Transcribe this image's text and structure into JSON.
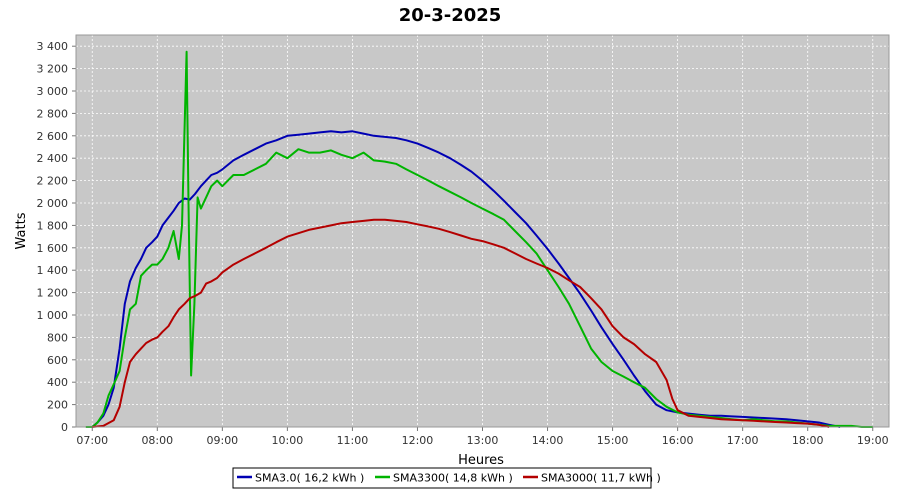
{
  "chart_data": {
    "type": "line",
    "title": "20-3-2025",
    "xlabel": "Heures",
    "ylabel": "Watts",
    "xlim": [
      6.75,
      19.25
    ],
    "ylim": [
      0,
      3500
    ],
    "x_ticks": [
      7,
      8,
      9,
      10,
      11,
      12,
      13,
      14,
      15,
      16,
      17,
      18,
      19
    ],
    "x_tick_labels": [
      "07:00",
      "08:00",
      "09:00",
      "10:00",
      "11:00",
      "12:00",
      "13:00",
      "14:00",
      "15:00",
      "16:00",
      "17:00",
      "18:00",
      "19:00"
    ],
    "y_ticks": [
      0,
      200,
      400,
      600,
      800,
      1000,
      1200,
      1400,
      1600,
      1800,
      2000,
      2200,
      2400,
      2600,
      2800,
      3000,
      3200,
      3400
    ],
    "y_tick_labels": [
      "0",
      "200",
      "400",
      "600",
      "800",
      "1 000",
      "1 200",
      "1 400",
      "1 600",
      "1 800",
      "2 000",
      "2 200",
      "2 400",
      "2 600",
      "2 800",
      "3 000",
      "3 200",
      "3 400"
    ],
    "grid": true,
    "legend_position": "bottom-center",
    "colors": {
      "plot_bg": "#c8c8c8",
      "grid": "#ffffff",
      "outline": "#999999"
    },
    "series": [
      {
        "name": "SMA3.0( 16,2 kWh )",
        "color": "#0000b4",
        "x": [
          7.0,
          7.08,
          7.17,
          7.25,
          7.33,
          7.42,
          7.5,
          7.58,
          7.67,
          7.75,
          7.83,
          7.92,
          8.0,
          8.08,
          8.17,
          8.25,
          8.33,
          8.42,
          8.5,
          8.58,
          8.67,
          8.75,
          8.83,
          8.92,
          9.0,
          9.17,
          9.33,
          9.5,
          9.67,
          9.83,
          10.0,
          10.17,
          10.33,
          10.5,
          10.67,
          10.83,
          11.0,
          11.17,
          11.33,
          11.5,
          11.67,
          11.83,
          12.0,
          12.17,
          12.33,
          12.5,
          12.67,
          12.83,
          13.0,
          13.17,
          13.33,
          13.5,
          13.67,
          13.83,
          14.0,
          14.17,
          14.33,
          14.5,
          14.67,
          14.83,
          15.0,
          15.17,
          15.33,
          15.5,
          15.67,
          15.83,
          16.0,
          16.17,
          16.33,
          16.5,
          16.67,
          16.83,
          17.0,
          17.17,
          17.33,
          17.5,
          17.67,
          17.83,
          18.0,
          18.17,
          18.33,
          18.5
        ],
        "y": [
          0,
          40,
          100,
          200,
          350,
          700,
          1100,
          1300,
          1420,
          1500,
          1600,
          1650,
          1700,
          1800,
          1870,
          1930,
          2000,
          2040,
          2030,
          2080,
          2150,
          2200,
          2250,
          2270,
          2300,
          2380,
          2430,
          2480,
          2530,
          2560,
          2600,
          2610,
          2620,
          2630,
          2640,
          2630,
          2640,
          2620,
          2600,
          2590,
          2580,
          2560,
          2530,
          2490,
          2450,
          2400,
          2340,
          2280,
          2200,
          2110,
          2020,
          1920,
          1820,
          1710,
          1590,
          1460,
          1330,
          1190,
          1040,
          890,
          740,
          600,
          460,
          320,
          200,
          150,
          130,
          120,
          110,
          100,
          100,
          95,
          90,
          85,
          80,
          75,
          70,
          60,
          50,
          40,
          20,
          0
        ]
      },
      {
        "name": "SMA3300( 14,8 kWh )",
        "color": "#00b400",
        "x": [
          6.9,
          7.0,
          7.08,
          7.17,
          7.25,
          7.33,
          7.42,
          7.5,
          7.58,
          7.67,
          7.75,
          7.83,
          7.92,
          8.0,
          8.08,
          8.17,
          8.25,
          8.33,
          8.38,
          8.45,
          8.48,
          8.52,
          8.57,
          8.62,
          8.67,
          8.75,
          8.83,
          8.92,
          9.0,
          9.17,
          9.33,
          9.5,
          9.67,
          9.83,
          10.0,
          10.17,
          10.33,
          10.5,
          10.67,
          10.83,
          11.0,
          11.17,
          11.33,
          11.5,
          11.67,
          11.83,
          12.0,
          12.17,
          12.33,
          12.5,
          12.67,
          12.83,
          13.0,
          13.17,
          13.33,
          13.5,
          13.67,
          13.83,
          14.0,
          14.17,
          14.33,
          14.5,
          14.67,
          14.83,
          15.0,
          15.17,
          15.33,
          15.5,
          15.67,
          15.83,
          16.0,
          16.17,
          16.33,
          16.5,
          16.67,
          16.83,
          17.0,
          17.17,
          17.33,
          17.5,
          17.67,
          17.83,
          18.0,
          18.17,
          18.33,
          18.5,
          18.67,
          18.83,
          19.0
        ],
        "y": [
          0,
          0,
          40,
          120,
          280,
          380,
          500,
          800,
          1050,
          1100,
          1350,
          1400,
          1450,
          1450,
          1500,
          1600,
          1750,
          1500,
          1800,
          3350,
          2000,
          460,
          1100,
          2050,
          1950,
          2050,
          2150,
          2200,
          2150,
          2250,
          2250,
          2300,
          2350,
          2450,
          2400,
          2480,
          2450,
          2450,
          2470,
          2430,
          2400,
          2450,
          2380,
          2370,
          2350,
          2300,
          2250,
          2200,
          2150,
          2100,
          2050,
          2000,
          1950,
          1900,
          1850,
          1750,
          1650,
          1550,
          1400,
          1250,
          1100,
          900,
          700,
          580,
          500,
          450,
          400,
          350,
          250,
          180,
          130,
          110,
          100,
          90,
          80,
          70,
          60,
          70,
          60,
          50,
          50,
          40,
          30,
          20,
          10,
          10,
          10,
          0,
          0
        ]
      },
      {
        "name": "SMA3000( 11,7 kWh )",
        "color": "#b40000",
        "x": [
          7.0,
          7.17,
          7.33,
          7.42,
          7.5,
          7.58,
          7.67,
          7.75,
          7.83,
          7.92,
          8.0,
          8.08,
          8.17,
          8.25,
          8.33,
          8.42,
          8.5,
          8.58,
          8.67,
          8.75,
          8.83,
          8.92,
          9.0,
          9.17,
          9.33,
          9.5,
          9.67,
          9.83,
          10.0,
          10.17,
          10.33,
          10.5,
          10.67,
          10.83,
          11.0,
          11.17,
          11.33,
          11.5,
          11.67,
          11.83,
          12.0,
          12.17,
          12.33,
          12.5,
          12.67,
          12.83,
          13.0,
          13.17,
          13.33,
          13.5,
          13.67,
          13.83,
          14.0,
          14.17,
          14.33,
          14.5,
          14.67,
          14.83,
          15.0,
          15.17,
          15.33,
          15.5,
          15.67,
          15.83,
          15.92,
          16.0,
          16.17,
          16.33,
          16.5,
          16.67,
          16.83,
          17.0,
          17.17,
          17.33,
          17.5,
          17.67,
          17.83,
          18.0,
          18.17,
          18.33
        ],
        "y": [
          0,
          10,
          60,
          180,
          400,
          580,
          650,
          700,
          750,
          780,
          800,
          850,
          900,
          980,
          1050,
          1100,
          1150,
          1170,
          1200,
          1280,
          1300,
          1330,
          1380,
          1450,
          1500,
          1550,
          1600,
          1650,
          1700,
          1730,
          1760,
          1780,
          1800,
          1820,
          1830,
          1840,
          1850,
          1850,
          1840,
          1830,
          1810,
          1790,
          1770,
          1740,
          1710,
          1680,
          1660,
          1630,
          1600,
          1550,
          1500,
          1460,
          1420,
          1370,
          1310,
          1250,
          1150,
          1050,
          900,
          800,
          740,
          650,
          580,
          420,
          250,
          150,
          100,
          90,
          80,
          70,
          65,
          60,
          55,
          50,
          45,
          40,
          35,
          30,
          20,
          0
        ]
      }
    ]
  }
}
